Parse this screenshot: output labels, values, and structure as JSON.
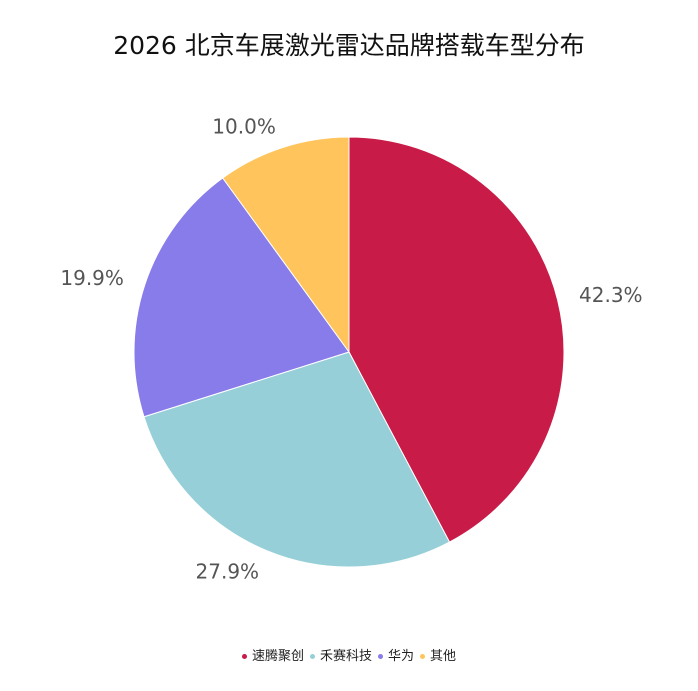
{
  "chart_data": {
    "type": "pie",
    "title": "2026 北京车展激光雷达品牌搭载车型分布",
    "categories": [
      "速腾聚创",
      "禾赛科技",
      "华为",
      "其他"
    ],
    "values": [
      42.3,
      27.9,
      19.9,
      10.0
    ],
    "labels": [
      "42.3%",
      "27.9%",
      "19.9%",
      "10.0%"
    ],
    "colors": [
      "#C91B47",
      "#96CFD8",
      "#887BEA",
      "#FFC55C"
    ],
    "start_angle": "top",
    "direction": "clockwise",
    "legend_position": "bottom"
  }
}
